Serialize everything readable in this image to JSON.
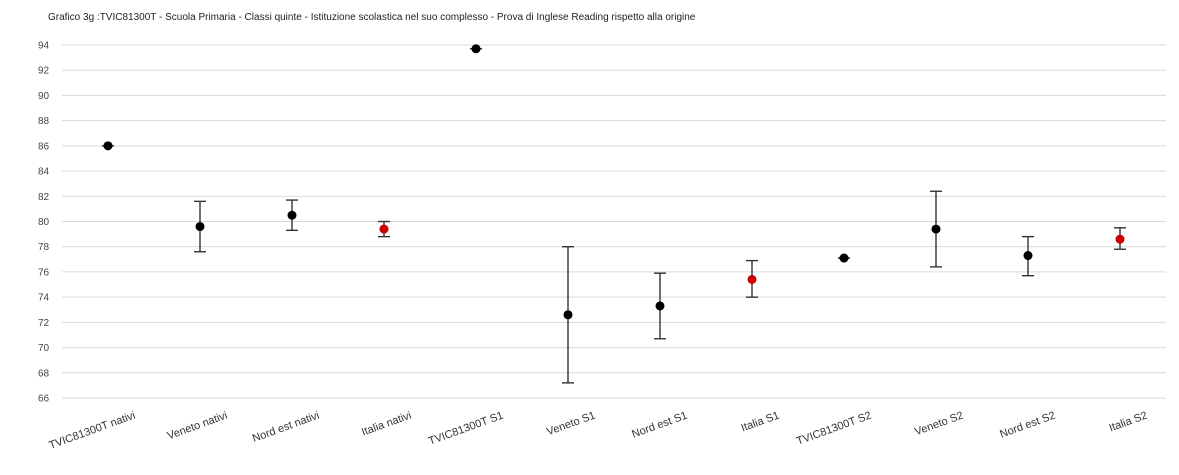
{
  "chart_data": {
    "type": "scatter",
    "title": "Grafico 3g :TVIC81300T - Scuola Primaria - Classi quinte - Istituzione scolastica nel suo complesso - Prova di Inglese Reading rispetto alla  origine",
    "xlabel": "",
    "ylabel": "",
    "ylim": [
      66,
      94
    ],
    "yticks": [
      66,
      68,
      70,
      72,
      74,
      76,
      78,
      80,
      82,
      84,
      86,
      88,
      90,
      92,
      94
    ],
    "grid": true,
    "legend": "none",
    "categories": [
      "TVIC81300T nativi",
      "Veneto nativi",
      "Nord est nativi",
      "Italia nativi",
      "TVIC81300T S1",
      "Veneto S1",
      "Nord est S1",
      "Italia S1",
      "TVIC81300T S2",
      "Veneto S2",
      "Nord est S2",
      "Italia S2"
    ],
    "values": [
      86.0,
      79.6,
      80.5,
      79.4,
      93.7,
      72.6,
      73.3,
      75.4,
      77.1,
      79.4,
      77.3,
      78.6
    ],
    "error_low": [
      86.0,
      77.6,
      79.3,
      78.8,
      93.7,
      67.2,
      70.7,
      74.0,
      77.1,
      76.4,
      75.7,
      77.8
    ],
    "error_high": [
      86.0,
      81.6,
      81.7,
      80.0,
      93.7,
      78.0,
      75.9,
      76.9,
      77.1,
      82.4,
      78.8,
      79.5
    ],
    "point_colors": [
      "#000000",
      "#000000",
      "#000000",
      "#cc0000",
      "#000000",
      "#000000",
      "#000000",
      "#cc0000",
      "#000000",
      "#000000",
      "#000000",
      "#cc0000"
    ],
    "colors": {
      "marker": "#000000",
      "highlight": "#cc0000",
      "error_bar": "#333333",
      "grid": "#d9d9d9"
    }
  }
}
